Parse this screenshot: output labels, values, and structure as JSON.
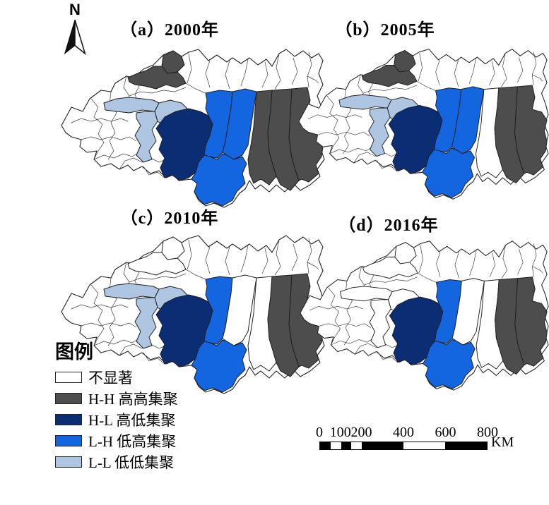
{
  "figure": {
    "type": "lisa-cluster-maps",
    "panel_count": 4
  },
  "north_arrow": {
    "label": "N"
  },
  "panels": [
    {
      "id": "a",
      "title": "（a）2000年",
      "assignments": {
        "nw1": "hh",
        "nw2": "hh",
        "ll1": "ll",
        "ll2": "ll",
        "ll3": "ll",
        "hl1": "hl",
        "lh1": "lh",
        "lh2": "lh",
        "lh3": "lh",
        "s1": "hh",
        "s2": "hh",
        "s3": "hh"
      }
    },
    {
      "id": "b",
      "title": "（b）2005年",
      "assignments": {
        "nw1": "hh",
        "nw2": "hh",
        "ll1": "ll",
        "ll2": "ll",
        "ll3": "ll",
        "hl1": "hl",
        "lh1": "lh",
        "lh2": "lh",
        "lh3": "lh",
        "s1": "ns",
        "s2": "hh",
        "s3": "hh"
      }
    },
    {
      "id": "c",
      "title": "（c）2010年",
      "assignments": {
        "nw1": "ns",
        "nw2": "ns",
        "ll1": "ll",
        "ll2": "ll",
        "ll3": "ll",
        "hl1": "hl",
        "lh1": "lh",
        "lh2": "ns",
        "lh3": "lh",
        "s1": "ns",
        "s2": "hh",
        "s3": "hh"
      }
    },
    {
      "id": "d",
      "title": "（d）2016年",
      "assignments": {
        "nw1": "ns",
        "nw2": "ns",
        "ll1": "ns",
        "ll2": "ns",
        "ll3": "ns",
        "hl1": "hl",
        "lh1": "lh",
        "lh2": "ns",
        "lh3": "lh",
        "s1": "ns",
        "s2": "hh",
        "s3": "hh"
      }
    }
  ],
  "legend": {
    "title": "图例",
    "items": [
      {
        "key": "ns",
        "label": "不显著",
        "color": "#ffffff"
      },
      {
        "key": "hh",
        "label": "H-H 高高集聚",
        "color": "#4d4d4d"
      },
      {
        "key": "hl",
        "label": "H-L 高低集聚",
        "color": "#0a2d73"
      },
      {
        "key": "lh",
        "label": "L-H 低高集聚",
        "color": "#1465e0"
      },
      {
        "key": "ll",
        "label": "L-L 低低集聚",
        "color": "#aec6e1"
      }
    ]
  },
  "scale_bar": {
    "ticks": [
      "0",
      "100",
      "200",
      "400",
      "600",
      "800"
    ],
    "unit": "KM"
  },
  "map_style": {
    "boundary_color": "#1f1f1f",
    "county_line_color": "#3c3c3c",
    "background": "#ffffff"
  }
}
